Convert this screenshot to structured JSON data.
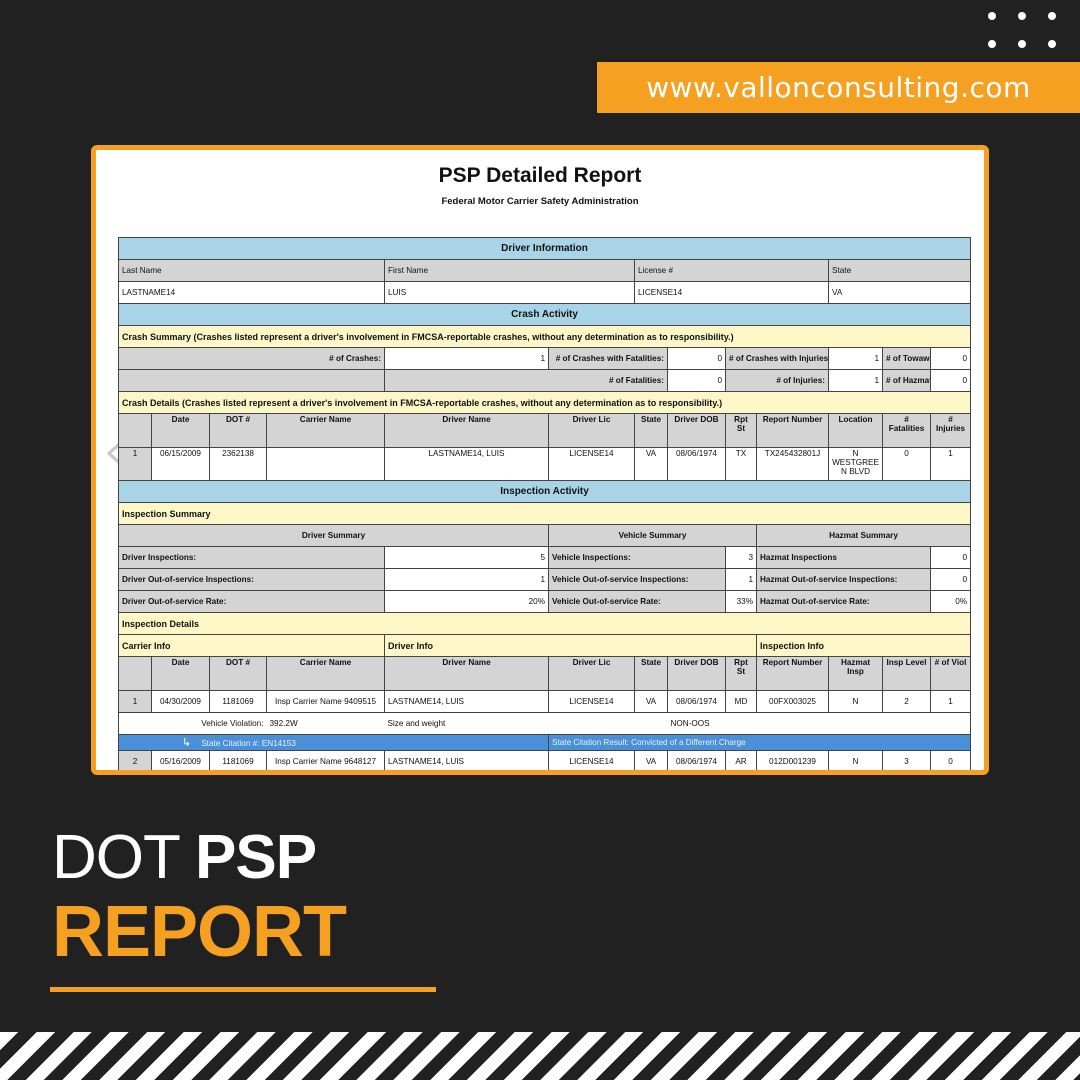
{
  "website": "www.vallonconsulting.com",
  "report": {
    "title": "PSP Detailed Report",
    "subtitle": "Federal Motor Carrier Safety Administration",
    "driver_info": {
      "section": "Driver Information",
      "labels": [
        "Last Name",
        "First Name",
        "License #",
        "State"
      ],
      "values": [
        "LASTNAME14",
        "LUIS",
        "LICENSE14",
        "VA"
      ]
    },
    "crash_activity": {
      "section": "Crash Activity",
      "summary_title": "Crash Summary (Crashes listed represent a driver's involvement in FMCSA-reportable crashes, without any determination as to responsibility.)",
      "crashes_label": "# of Crashes:",
      "crashes": "1",
      "fatal_crashes_label": "# of Crashes with Fatalities:",
      "fatal_crashes": "0",
      "injury_crashes_label": "# of Crashes with Injuries:",
      "injury_crashes": "1",
      "towaways_label": "# of Towaways:",
      "towaways": "0",
      "fatalities_label": "# of Fatalities:",
      "fatalities": "0",
      "injuries_label": "# of Injuries:",
      "injuries": "1",
      "hazmat_label": "# of Hazmat Releases:",
      "hazmat": "0",
      "details_title": "Crash Details (Crashes listed represent a driver's involvement in FMCSA-reportable crashes, without any determination as to responsibility.)",
      "columns": [
        "",
        "Date",
        "DOT #",
        "Carrier Name",
        "Driver Name",
        "Driver Lic",
        "State",
        "Driver DOB",
        "Rpt St",
        "Report Number",
        "Location",
        "# Fatalities",
        "# Injuries"
      ],
      "rows": [
        [
          "1",
          "06/15/2009",
          "2362138",
          "",
          "LASTNAME14, LUIS",
          "LICENSE14",
          "VA",
          "08/06/1974",
          "TX",
          "TX245432801J",
          "N WESTGREE N BLVD",
          "0",
          "1"
        ]
      ]
    },
    "inspection_activity": {
      "section": "Inspection Activity",
      "summary_title": "Inspection Summary",
      "driver_summary": "Driver Summary",
      "vehicle_summary": "Vehicle Summary",
      "hazmat_summary": "Hazmat Summary",
      "rows": [
        {
          "d_label": "Driver Inspections:",
          "d_val": "5",
          "v_label": "Vehicle Inspections:",
          "v_val": "3",
          "h_label": "Hazmat Inspections",
          "h_val": "0"
        },
        {
          "d_label": "Driver Out-of-service Inspections:",
          "d_val": "1",
          "v_label": "Vehicle Out-of-service Inspections:",
          "v_val": "1",
          "h_label": "Hazmat Out-of-service Inspections:",
          "h_val": "0"
        },
        {
          "d_label": "Driver Out-of-service Rate:",
          "d_val": "20%",
          "v_label": "Vehicle Out-of-service Rate:",
          "v_val": "33%",
          "h_label": "Hazmat Out-of-service Rate:",
          "h_val": "0%"
        }
      ],
      "details_title": "Inspection Details",
      "carrier_info": "Carrier Info",
      "driver_info": "Driver Info",
      "inspection_info": "Inspection Info",
      "columns": [
        "",
        "Date",
        "DOT #",
        "Carrier Name",
        "Driver Name",
        "Driver Lic",
        "State",
        "Driver DOB",
        "Rpt St",
        "Report Number",
        "Hazmat Insp",
        "Insp Level",
        "# of Viol"
      ],
      "row1": [
        "1",
        "04/30/2009",
        "1181069",
        "Insp Carrier Name 9409515",
        "LASTNAME14, LUIS",
        "LICENSE14",
        "VA",
        "08/06/1974",
        "MD",
        "00FX003025",
        "N",
        "2",
        "1"
      ],
      "violation": {
        "label": "Vehicle Violation:",
        "code": "392.2W",
        "desc": "Size and weight",
        "oos": "NON-OOS"
      },
      "citation": {
        "number": "State Citation #: EN14153",
        "result": "State Citation Result: Convicted of a Different Charge"
      },
      "row2": [
        "2",
        "05/16/2009",
        "1181069",
        "Insp Carrier Name 9648127",
        "LASTNAME14, LUIS",
        "LICENSE14",
        "VA",
        "08/06/1974",
        "AR",
        "012D001239",
        "N",
        "3",
        "0"
      ]
    }
  },
  "heading": {
    "line1_light": "DOT",
    "line1_bold": "PSP",
    "line2": "REPORT"
  },
  "colors": {
    "background": "#212121",
    "accent": "#f5a020",
    "section_blue": "#a9d3e6",
    "summary_yellow": "#fdf7c8",
    "citation_blue": "#4a90d9"
  }
}
